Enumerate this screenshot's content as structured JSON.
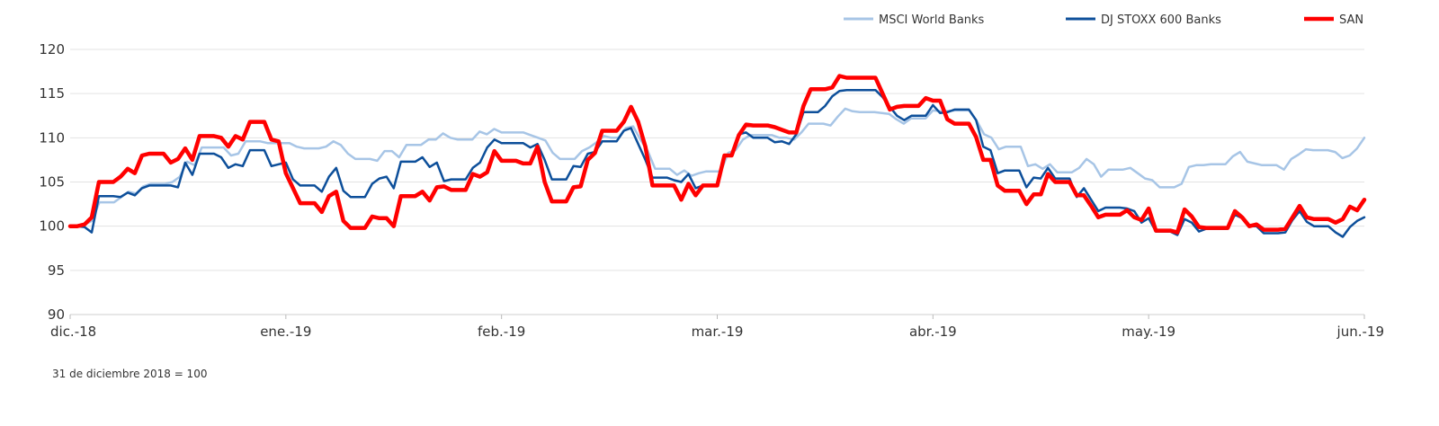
{
  "chart_data": {
    "type": "line",
    "footnote": "31 de diciembre 2018 = 100",
    "x_labels": [
      "dic.-18",
      "ene.-19",
      "feb.-19",
      "mar.-19",
      "abr.-19",
      "may.-19",
      "jun.-19"
    ],
    "ylim": [
      90,
      120
    ],
    "y_ticks": [
      90,
      95,
      100,
      105,
      110,
      115,
      120
    ],
    "grid": true,
    "legend_position": "top-right",
    "series": [
      {
        "name": "MSCI World Banks",
        "color": "#a7c5e6",
        "values": [
          100,
          100,
          100.2,
          100.6,
          102.7,
          102.7,
          102.7,
          103.3,
          103.9,
          103.7,
          104.5,
          104.8,
          104.8,
          104.8,
          105.0,
          105.6,
          107.3,
          106.9,
          108.9,
          108.9,
          108.9,
          108.9,
          108.0,
          108.2,
          109.6,
          109.6,
          109.6,
          109.4,
          109.4,
          109.4,
          109.4,
          109.0,
          108.8,
          108.8,
          108.8,
          109.0,
          109.6,
          109.2,
          108.2,
          107.6,
          107.6,
          107.6,
          107.4,
          108.5,
          108.5,
          107.8,
          109.2,
          109.2,
          109.2,
          109.8,
          109.8,
          110.5,
          110.0,
          109.8,
          109.8,
          109.8,
          110.7,
          110.4,
          111.0,
          110.6,
          110.6,
          110.6,
          110.6,
          110.3,
          110.0,
          109.7,
          108.3,
          107.6,
          107.6,
          107.6,
          108.5,
          108.9,
          109.5,
          110.2,
          110.0,
          110.0,
          111.1,
          111.3,
          109.8,
          108.5,
          106.5,
          106.5,
          106.5,
          105.8,
          106.3,
          105.7,
          106.0,
          106.2,
          106.2,
          106.2,
          108.3,
          108.6,
          109.8,
          110.3,
          110.3,
          110.3,
          110.3,
          110.0,
          110.0,
          109.8,
          110.6,
          111.6,
          111.6,
          111.6,
          111.4,
          112.4,
          113.3,
          113.0,
          112.9,
          112.9,
          112.9,
          112.8,
          112.7,
          112.1,
          111.6,
          112.2,
          112.2,
          112.2,
          113.1,
          113.0,
          113.0,
          113.1,
          113.1,
          113.1,
          111.9,
          110.4,
          110.0,
          108.7,
          109.0,
          109.0,
          109.0,
          106.8,
          107.0,
          106.5,
          107.0,
          106.1,
          106.1,
          106.1,
          106.6,
          107.6,
          107.0,
          105.6,
          106.4,
          106.4,
          106.4,
          106.6,
          106.0,
          105.4,
          105.2,
          104.4,
          104.4,
          104.4,
          104.8,
          106.7,
          106.9,
          106.9,
          107.0,
          107.0,
          107.0,
          107.9,
          108.4,
          107.3,
          107.1,
          106.9,
          106.9,
          106.9,
          106.4,
          107.6,
          108.1,
          108.7,
          108.6,
          108.6,
          108.6,
          108.4,
          107.7,
          108.0,
          108.8,
          110.0
        ]
      },
      {
        "name": "DJ STOXX 600 Banks",
        "color": "#0d4f9a",
        "values": [
          100,
          100,
          99.9,
          99.3,
          103.4,
          103.4,
          103.4,
          103.3,
          103.8,
          103.5,
          104.3,
          104.6,
          104.6,
          104.6,
          104.6,
          104.4,
          107.2,
          105.8,
          108.2,
          108.2,
          108.2,
          107.8,
          106.6,
          107.0,
          106.8,
          108.6,
          108.6,
          108.6,
          106.8,
          107.0,
          107.2,
          105.3,
          104.6,
          104.6,
          104.6,
          103.9,
          105.6,
          106.6,
          104.0,
          103.3,
          103.3,
          103.3,
          104.8,
          105.4,
          105.6,
          104.3,
          107.3,
          107.3,
          107.3,
          107.8,
          106.7,
          107.2,
          105.1,
          105.3,
          105.3,
          105.3,
          106.6,
          107.2,
          108.9,
          109.8,
          109.4,
          109.4,
          109.4,
          109.4,
          108.9,
          109.3,
          107.5,
          105.3,
          105.3,
          105.3,
          106.8,
          106.7,
          108.2,
          108.4,
          109.6,
          109.6,
          109.6,
          110.8,
          111.1,
          109.3,
          107.5,
          105.5,
          105.5,
          105.5,
          105.2,
          105.0,
          105.9,
          104.3,
          104.6,
          104.6,
          104.6,
          107.9,
          108.0,
          110.4,
          110.6,
          110.0,
          110.0,
          110.0,
          109.5,
          109.6,
          109.3,
          110.4,
          112.9,
          112.9,
          112.9,
          113.6,
          114.7,
          115.3,
          115.4,
          115.4,
          115.4,
          115.4,
          115.4,
          114.6,
          113.5,
          112.5,
          112.0,
          112.5,
          112.5,
          112.5,
          113.7,
          112.8,
          112.9,
          113.2,
          113.2,
          113.2,
          112.0,
          109.0,
          108.6,
          106.0,
          106.3,
          106.3,
          106.3,
          104.4,
          105.5,
          105.4,
          106.6,
          105.4,
          105.4,
          105.4,
          103.3,
          104.3,
          103.0,
          101.7,
          102.1,
          102.1,
          102.1,
          102.0,
          101.7,
          100.4,
          100.9,
          99.4,
          99.4,
          99.4,
          99.0,
          100.8,
          100.4,
          99.4,
          99.7,
          99.7,
          99.7,
          99.7,
          101.3,
          100.9,
          100.0,
          100.0,
          99.2,
          99.2,
          99.2,
          99.3,
          100.7,
          101.7,
          100.5,
          100.0,
          100.0,
          100.0,
          99.3,
          98.8,
          99.9,
          100.6,
          101.0
        ]
      },
      {
        "name": "SAN",
        "color": "#ff0000",
        "values": [
          100,
          100,
          100.2,
          101.0,
          105.0,
          105.0,
          105.0,
          105.6,
          106.5,
          106.0,
          108.0,
          108.2,
          108.2,
          108.2,
          107.2,
          107.6,
          108.8,
          107.5,
          110.2,
          110.2,
          110.2,
          110.0,
          109.0,
          110.2,
          109.8,
          111.8,
          111.8,
          111.8,
          109.8,
          109.6,
          106.0,
          104.3,
          102.6,
          102.6,
          102.6,
          101.6,
          103.4,
          103.9,
          100.6,
          99.8,
          99.8,
          99.8,
          101.1,
          100.9,
          100.9,
          100.0,
          103.4,
          103.4,
          103.4,
          103.9,
          102.9,
          104.4,
          104.5,
          104.1,
          104.1,
          104.1,
          105.9,
          105.6,
          106.1,
          108.5,
          107.4,
          107.4,
          107.4,
          107.1,
          107.1,
          109.0,
          105.0,
          102.8,
          102.8,
          102.8,
          104.4,
          104.5,
          107.5,
          108.3,
          110.8,
          110.8,
          110.8,
          111.8,
          113.5,
          111.8,
          109.0,
          104.6,
          104.6,
          104.6,
          104.6,
          103.0,
          104.8,
          103.5,
          104.6,
          104.6,
          104.6,
          108.0,
          108.0,
          110.3,
          111.5,
          111.4,
          111.4,
          111.4,
          111.2,
          110.9,
          110.6,
          110.6,
          113.6,
          115.5,
          115.5,
          115.5,
          115.7,
          117.0,
          116.8,
          116.8,
          116.8,
          116.8,
          116.8,
          115.0,
          113.2,
          113.5,
          113.6,
          113.6,
          113.6,
          114.5,
          114.2,
          114.2,
          112.1,
          111.6,
          111.6,
          111.6,
          110.1,
          107.5,
          107.5,
          104.6,
          104.0,
          104.0,
          104.0,
          102.5,
          103.6,
          103.6,
          105.9,
          105.0,
          105.0,
          105.0,
          103.5,
          103.5,
          102.3,
          101.0,
          101.3,
          101.3,
          101.3,
          101.8,
          101.0,
          100.7,
          102.0,
          99.5,
          99.5,
          99.5,
          99.3,
          101.9,
          101.1,
          99.9,
          99.8,
          99.8,
          99.8,
          99.8,
          101.7,
          101.0,
          100.0,
          100.2,
          99.6,
          99.6,
          99.6,
          99.7,
          101.0,
          102.3,
          101.0,
          100.8,
          100.8,
          100.8,
          100.4,
          100.8,
          102.2,
          101.8,
          103.0
        ]
      }
    ]
  }
}
